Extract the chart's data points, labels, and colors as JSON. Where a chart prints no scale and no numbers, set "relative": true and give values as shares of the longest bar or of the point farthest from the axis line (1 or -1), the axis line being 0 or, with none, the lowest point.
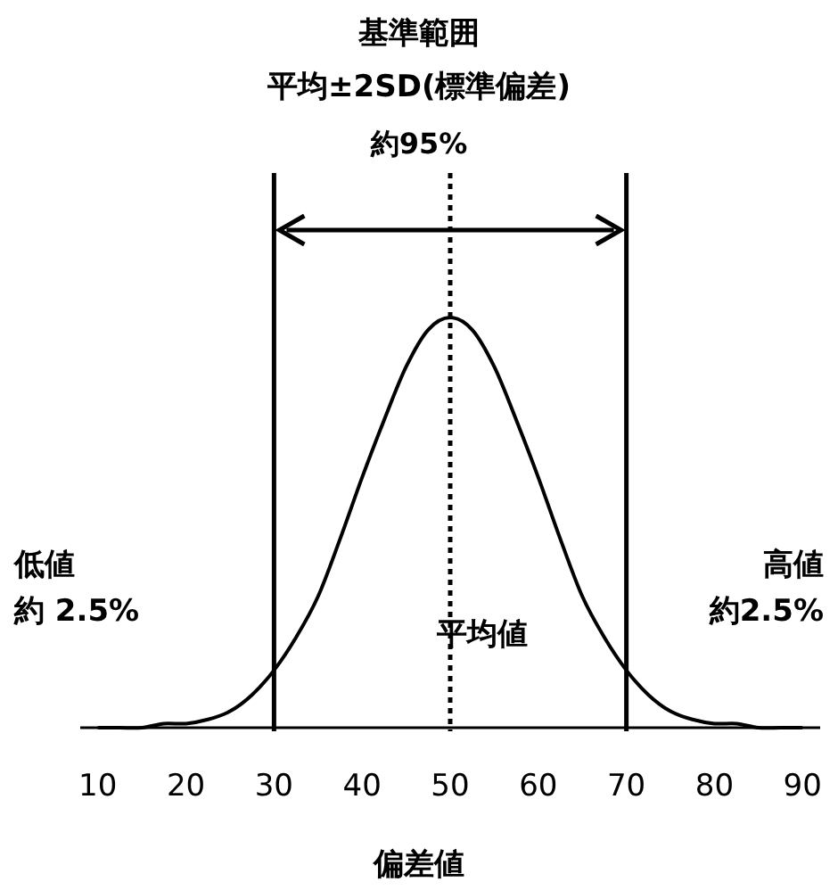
{
  "chart_data": {
    "type": "line",
    "title": "基準範囲",
    "subtitle": "平均±2SD(標準偏差)",
    "xlabel": "偏差値",
    "relative": true,
    "color": "#000000",
    "x": [
      10,
      12.5,
      15,
      17.5,
      20,
      22.5,
      25,
      27.5,
      30,
      32.5,
      35,
      37.5,
      40,
      42.5,
      45,
      47.5,
      50,
      52.5,
      55,
      57.5,
      60,
      62.5,
      65,
      67.5,
      70,
      72.5,
      75,
      77.5,
      80,
      82.5,
      85,
      87.5,
      90
    ],
    "values": [
      0,
      0,
      0,
      0.01,
      0.01,
      0.02,
      0.04,
      0.08,
      0.14,
      0.22,
      0.32,
      0.46,
      0.61,
      0.75,
      0.88,
      0.97,
      1,
      0.97,
      0.88,
      0.75,
      0.61,
      0.46,
      0.32,
      0.22,
      0.14,
      0.08,
      0.04,
      0.02,
      0.01,
      0.01,
      0,
      0,
      0
    ],
    "xlim": [
      8,
      92
    ],
    "xticks": [
      10,
      20,
      30,
      40,
      50,
      60,
      70,
      80,
      90
    ],
    "ref_lines": [
      {
        "axis": "x",
        "value": 30,
        "line_style": "solid"
      },
      {
        "axis": "x",
        "value": 50,
        "line_style": "dotted",
        "label": "平均値"
      },
      {
        "axis": "x",
        "value": 70,
        "line_style": "solid"
      }
    ],
    "annotations": [
      "約95%",
      "低値",
      "約 2.5%",
      "高値",
      "約2.5%"
    ]
  }
}
